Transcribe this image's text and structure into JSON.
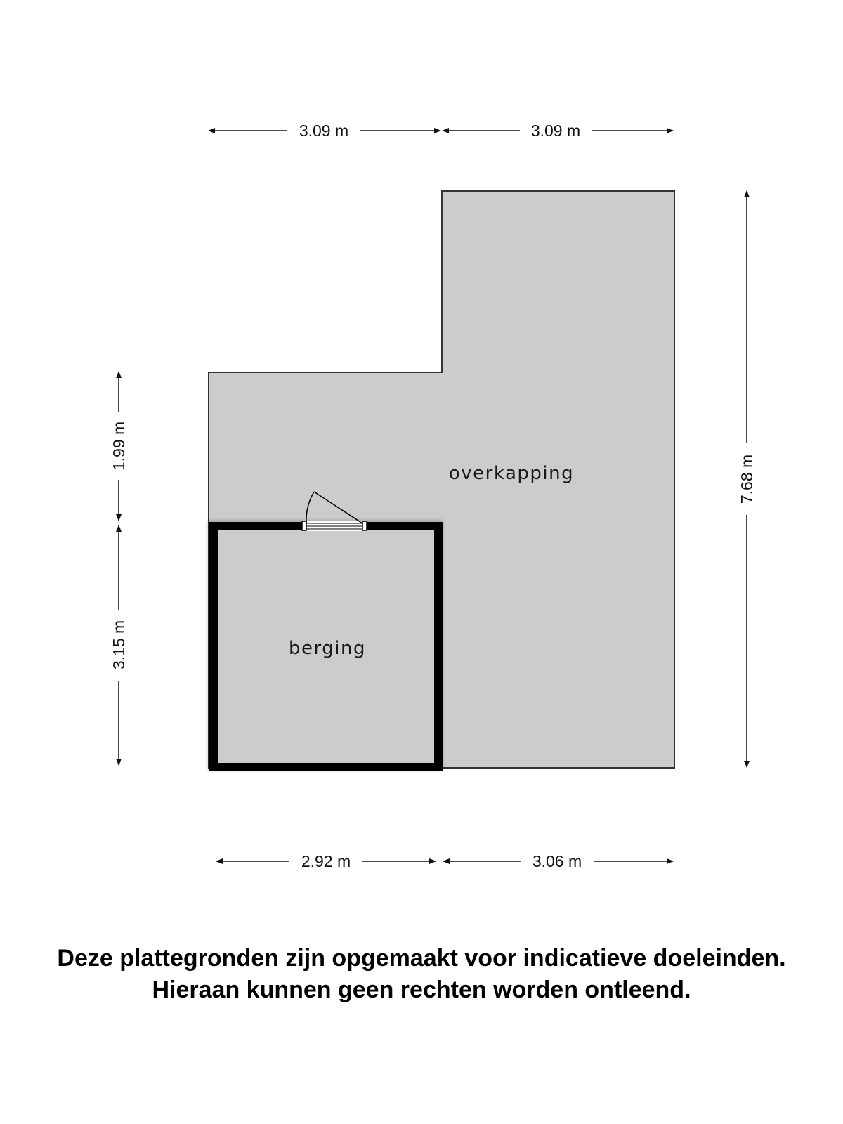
{
  "rooms": {
    "overkapping": "overkapping",
    "berging": "berging"
  },
  "dimensions": {
    "top_left": "3.09 m",
    "top_right": "3.09 m",
    "left_upper": "1.99 m",
    "left_lower": "3.15 m",
    "right": "7.68 m",
    "bottom_left": "2.92 m",
    "bottom_right": "3.06 m"
  },
  "disclaimer": {
    "line1": "Deze plattegronden zijn opgemaakt voor indicatieve doeleinden.",
    "line2": "Hieraan kunnen geen rechten worden ontleend."
  },
  "colors": {
    "floor": "#cccccc",
    "wall": "#000000",
    "background": "#ffffff"
  }
}
